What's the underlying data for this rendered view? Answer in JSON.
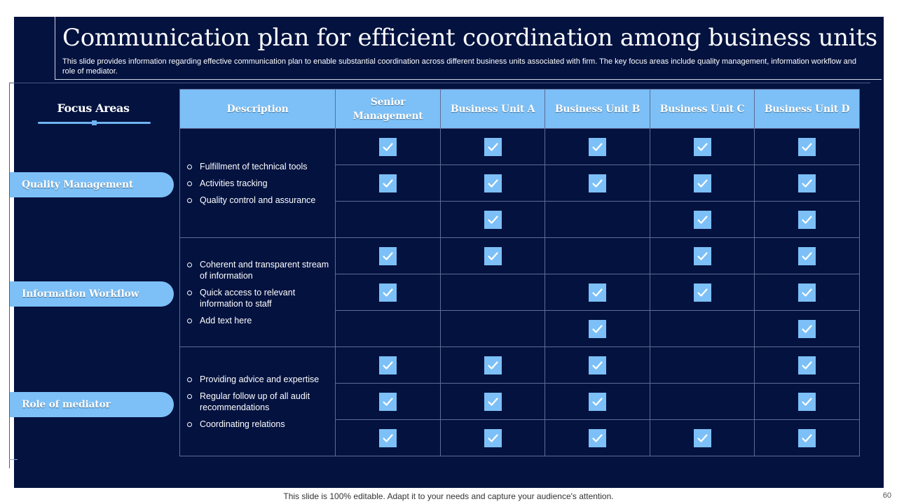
{
  "slide": {
    "title": "Communication plan for efficient coordination among business units",
    "subtitle": "This slide provides information regarding effective communication plan to enable substantial coordination across different business units associated with firm. The key focus areas include quality management, information workflow and role of mediator."
  },
  "focus_heading": "Focus Areas",
  "columns": [
    "Description",
    "Senior Management",
    "Business Unit A",
    "Business Unit B",
    "Business Unit C",
    "Business Unit D"
  ],
  "groups": [
    {
      "area": "Quality Management",
      "items": [
        "Fulfillment of technical tools",
        "Activities tracking",
        "Quality control and assurance"
      ],
      "checks": [
        [
          true,
          true,
          true,
          true,
          true
        ],
        [
          true,
          true,
          true,
          true,
          true
        ],
        [
          false,
          true,
          false,
          true,
          true
        ]
      ]
    },
    {
      "area": "Information Workflow",
      "items": [
        "Coherent  and transparent stream of information",
        "Quick access to relevant information to staff",
        "Add text here"
      ],
      "checks": [
        [
          true,
          true,
          false,
          true,
          true
        ],
        [
          true,
          false,
          true,
          true,
          true
        ],
        [
          false,
          false,
          true,
          false,
          true
        ]
      ]
    },
    {
      "area": "Role of mediator",
      "items": [
        "Providing advice  and expertise",
        "Regular follow up of all audit recommendations",
        "Coordinating relations"
      ],
      "checks": [
        [
          true,
          true,
          true,
          false,
          true
        ],
        [
          true,
          true,
          true,
          false,
          true
        ],
        [
          true,
          true,
          true,
          true,
          true
        ]
      ]
    }
  ],
  "footer": "This slide is 100% editable. Adapt it to your needs and capture your audience's attention.",
  "page_number": "60",
  "colors": {
    "background": "#03123f",
    "accent": "#7cc0f7"
  },
  "icons": {
    "check": "checkmark-icon",
    "bullet": "hollow-circle-bullet"
  }
}
